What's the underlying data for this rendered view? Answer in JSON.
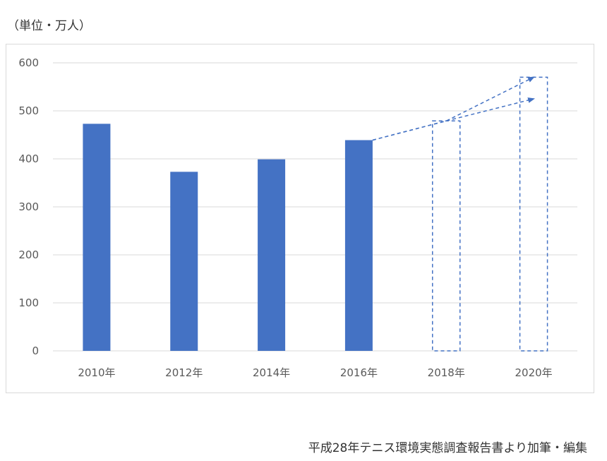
{
  "unit_label": "（単位・万人）",
  "source_note": "平成28年テニス環境実態調査報告書より加筆・編集",
  "colors": {
    "bar": "#4472c4",
    "grid": "#d9d9d9",
    "projection": "#4472c4"
  },
  "chart_data": {
    "type": "bar",
    "categories": [
      "2010年",
      "2012年",
      "2014年",
      "2016年",
      "2018年",
      "2020年"
    ],
    "values": [
      473,
      373,
      399,
      439,
      null,
      null
    ],
    "projected": [
      {
        "category": "2018年",
        "value": 479
      },
      {
        "category": "2020年",
        "value": 570
      }
    ],
    "projection_arrows": [
      {
        "from": "2016年",
        "via": "2018年",
        "to_category": "2020年",
        "to_value": 570
      },
      {
        "from": "2016年",
        "via": "2018年",
        "to_category": "2020年",
        "to_value": 525
      }
    ],
    "yticks": [
      0,
      100,
      200,
      300,
      400,
      500,
      600
    ],
    "ylim": [
      0,
      600
    ],
    "title": "",
    "xlabel": "",
    "ylabel": "",
    "grid": true,
    "legend": "none"
  }
}
